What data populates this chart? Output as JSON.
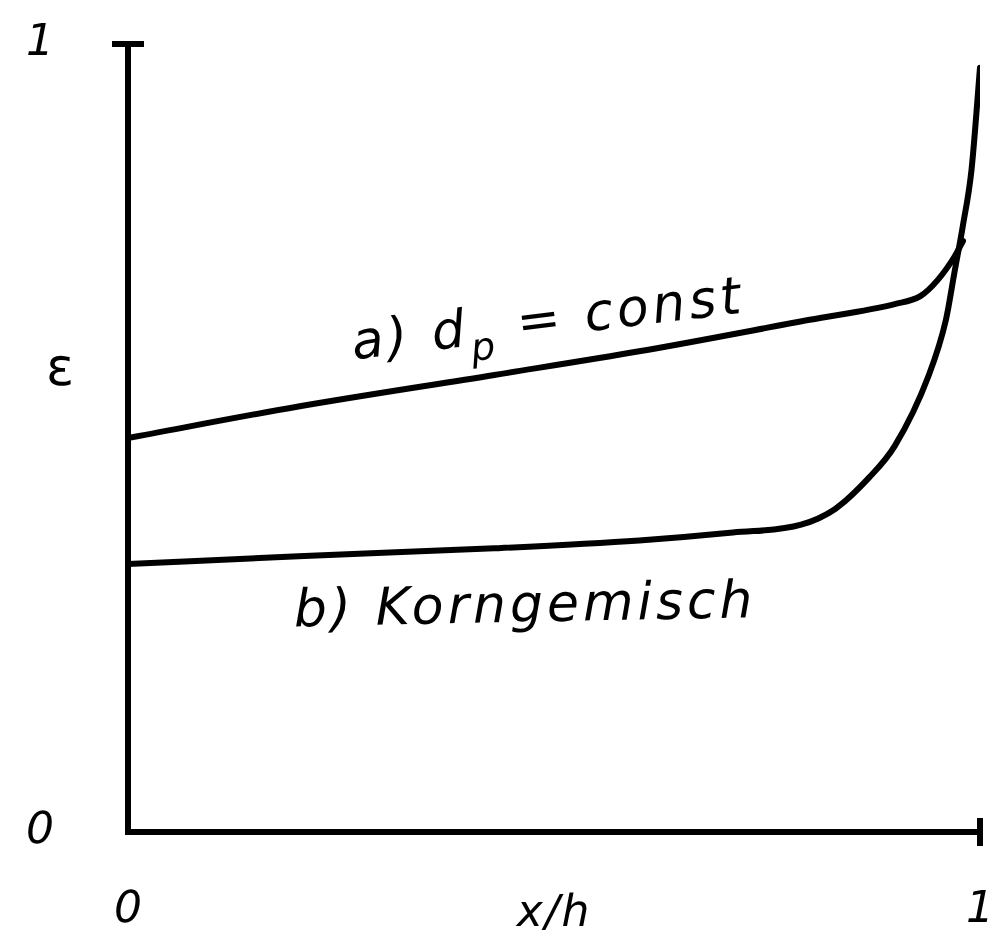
{
  "chart_data": {
    "type": "line",
    "xlabel": "x/h",
    "ylabel": "ε",
    "xlim": [
      0,
      1
    ],
    "ylim": [
      0,
      1
    ],
    "xticks": [
      0,
      1
    ],
    "yticks": [
      0,
      1
    ],
    "marker": "none",
    "line_style": "solid",
    "series": [
      {
        "name": "a) d$_{p}$ = const",
        "color": "#000000",
        "x": [
          0,
          0.2,
          0.43,
          0.6,
          0.8,
          0.9,
          0.93,
          0.95,
          0.97,
          0.98
        ],
        "values": [
          0.5,
          0.54,
          0.58,
          0.61,
          0.65,
          0.67,
          0.68,
          0.7,
          0.73,
          0.75
        ]
      },
      {
        "name": "b) Korngemisch",
        "color": "#000000",
        "x": [
          0,
          0.2,
          0.43,
          0.6,
          0.71,
          0.79,
          0.83,
          0.87,
          0.9,
          0.94,
          0.96,
          0.97,
          0.98,
          0.99,
          1
        ],
        "values": [
          0.34,
          0.35,
          0.36,
          0.37,
          0.38,
          0.39,
          0.41,
          0.45,
          0.49,
          0.58,
          0.65,
          0.71,
          0.77,
          0.84,
          0.97
        ]
      }
    ]
  }
}
